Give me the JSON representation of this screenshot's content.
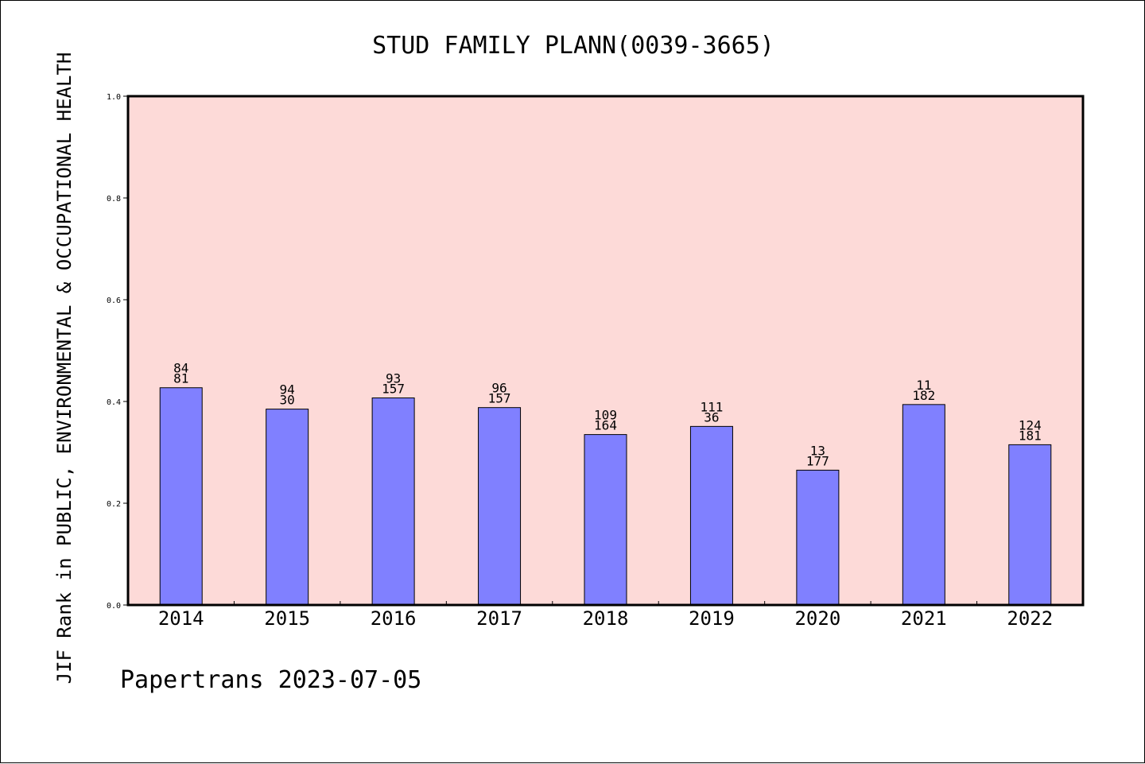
{
  "chart_data": {
    "type": "bar",
    "title": "STUD FAMILY PLANN(0039-3665)",
    "xlabel": "",
    "ylabel": "JIF Rank in PUBLIC, ENVIRONMENTAL & OCCUPATIONAL HEALTH",
    "ylim": [
      0.0,
      1.0
    ],
    "yticks": [
      "0.0",
      "0.2",
      "0.4",
      "0.6",
      "0.8",
      "1.0"
    ],
    "categories": [
      "2014",
      "2015",
      "2016",
      "2017",
      "2018",
      "2019",
      "2020",
      "2021",
      "2022"
    ],
    "values": [
      0.427,
      0.385,
      0.407,
      0.388,
      0.335,
      0.351,
      0.265,
      0.394,
      0.315
    ],
    "labels_top": [
      "84",
      "94",
      "93",
      "96",
      "109",
      "111",
      "13",
      "11",
      "124"
    ],
    "labels_bottom": [
      "81",
      "30",
      "157",
      "157",
      "164",
      "36",
      "177",
      "182",
      "181"
    ],
    "grid": false,
    "colors": {
      "plot_background": "#fddad8",
      "bar_fill": "#8080ff",
      "bar_stroke": "#000000"
    }
  },
  "footer": {
    "text": "Papertrans 2023-07-05"
  }
}
